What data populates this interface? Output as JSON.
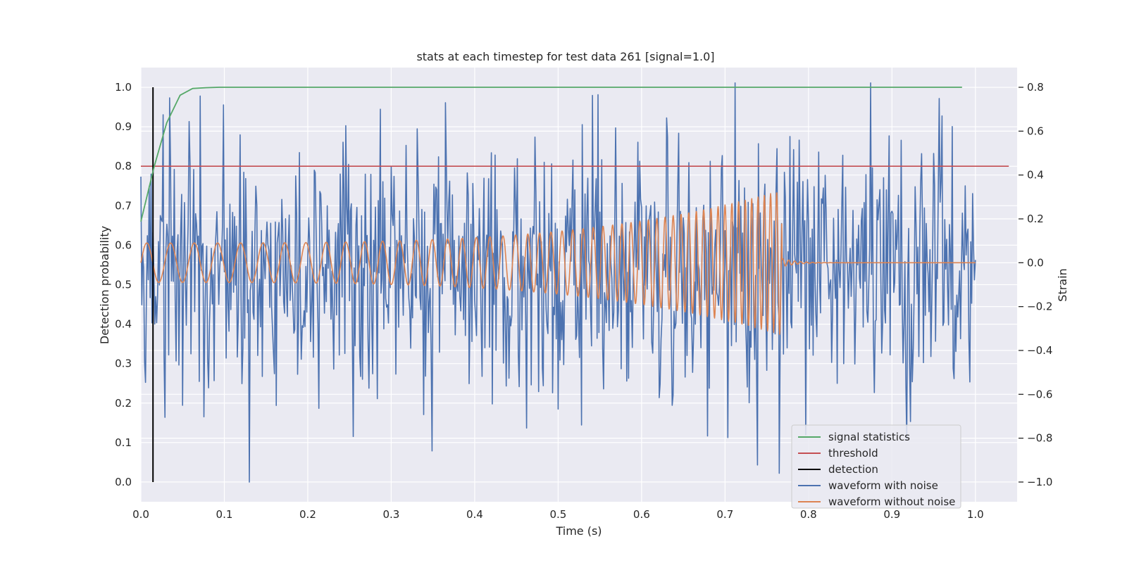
{
  "chart_data": {
    "type": "line",
    "title": "stats at each timestep for test data 261 [signal=1.0]",
    "xlabel": "Time (s)",
    "ylabel_left": "Detection probability",
    "ylabel_right": "Strain",
    "xlim": [
      0.0,
      1.05
    ],
    "ylim_left": [
      -0.05,
      1.05
    ],
    "ylim_right": [
      -1.09,
      0.89
    ],
    "x_ticks": [
      "0.0",
      "0.1",
      "0.2",
      "0.3",
      "0.4",
      "0.5",
      "0.6",
      "0.7",
      "0.8",
      "0.9",
      "1.0"
    ],
    "y_ticks_left": [
      "0.0",
      "0.1",
      "0.2",
      "0.3",
      "0.4",
      "0.5",
      "0.6",
      "0.7",
      "0.8",
      "0.9",
      "1.0"
    ],
    "y_ticks_right": [
      "0.8",
      "0.6",
      "0.4",
      "0.2",
      "0.0",
      "−0.2",
      "−0.4",
      "−0.6",
      "−0.8",
      "−1.0"
    ],
    "grid": true,
    "legend_position": "bottom-right",
    "colors": {
      "signal_statistics": "#55a868",
      "threshold": "#c44e52",
      "detection": "#000000",
      "waveform_with_noise": "#4c72b0",
      "waveform_without_noise": "#dd8452",
      "plot_background": "#eaeaf2",
      "grid": "#ffffff"
    },
    "series": [
      {
        "name": "signal statistics",
        "axis": "left",
        "x": [
          0.0,
          0.016,
          0.031,
          0.047,
          0.062,
          0.078,
          0.094,
          0.2,
          0.4,
          0.6,
          0.8,
          0.984
        ],
        "y": [
          0.66,
          0.8,
          0.91,
          0.98,
          0.997,
          0.999,
          1.0,
          1.0,
          1.0,
          1.0,
          1.0,
          1.0
        ]
      },
      {
        "name": "threshold",
        "axis": "left",
        "x": [
          0.0,
          1.04
        ],
        "y": [
          0.8,
          0.8
        ]
      },
      {
        "name": "detection",
        "axis": "left",
        "x": [
          0.0145,
          0.0145
        ],
        "y": [
          0.0,
          1.0
        ]
      },
      {
        "name": "waveform with noise",
        "axis": "right",
        "note_sampling": "noise trace from t=0 to t=1.0, amplitude roughly within -1.0 to 0.8 strain",
        "t_start": 0.0,
        "t_end": 1.0,
        "samples": 900,
        "peaks": [
          {
            "x": 0.099,
            "y": 0.72
          },
          {
            "x": 0.13,
            "y": -1.0
          },
          {
            "x": 0.287,
            "y": 0.7
          },
          {
            "x": 0.365,
            "y": 0.73
          },
          {
            "x": 0.712,
            "y": 0.82
          },
          {
            "x": 0.679,
            "y": -0.79
          },
          {
            "x": 0.765,
            "y": -0.96
          },
          {
            "x": 0.528,
            "y": -0.74
          }
        ]
      },
      {
        "name": "waveform without noise",
        "axis": "right",
        "note_sampling": "chirp waveform from t=0 to merger at t=0.768, then ringdown to zero until t=1.0",
        "t_start": 0.0,
        "t_merge": 0.768,
        "t_end": 1.0,
        "amplitude_start": 0.09,
        "amplitude_peak": 0.33,
        "cycles_per_second_start": 35,
        "cycles_per_second_end": 140
      }
    ]
  },
  "legend": {
    "items": [
      {
        "label": "signal statistics",
        "color": "#55a868"
      },
      {
        "label": "threshold",
        "color": "#c44e52"
      },
      {
        "label": "detection",
        "color": "#000000"
      },
      {
        "label": "waveform with noise",
        "color": "#4c72b0"
      },
      {
        "label": "waveform without noise",
        "color": "#dd8452"
      }
    ]
  }
}
